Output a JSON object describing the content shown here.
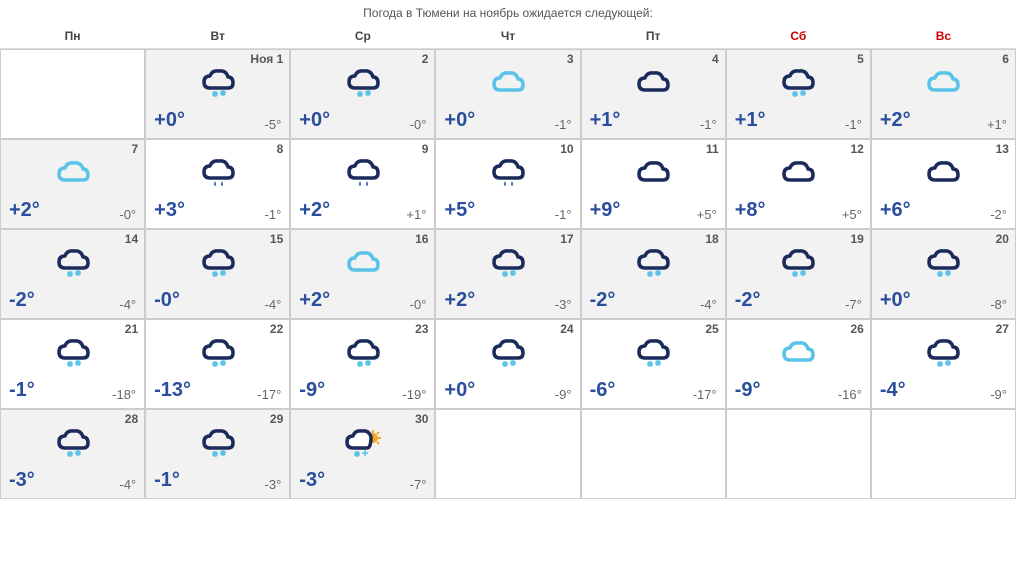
{
  "title": "Погода в Тюмени на ноябрь ожидается следующей:",
  "weekdays": [
    "Пн",
    "Вт",
    "Ср",
    "Чт",
    "Пт",
    "Сб",
    "Вс"
  ],
  "weekend_color": "#cc0000",
  "weekday_color": "#444444",
  "high_color": "#2a4e9c",
  "low_color": "#666666",
  "alt_bg": "#f2f2f2",
  "border_color": "#cccccc",
  "icon_colors": {
    "cloud_dark": "#1a2a5a",
    "cloud_light": "#5ac3e8",
    "snow": "#5ac3e8",
    "rain": "#3a6aaa",
    "sun": "#f5a623"
  },
  "cells": [
    {
      "day": "",
      "label": "",
      "high": "",
      "low": "",
      "icon": "",
      "alt": false,
      "empty": true
    },
    {
      "day": "1",
      "label": "Ноя 1",
      "high": "+0°",
      "low": "-5°",
      "icon": "cloud-snow-dark",
      "alt": true
    },
    {
      "day": "2",
      "label": "2",
      "high": "+0°",
      "low": "-0°",
      "icon": "cloud-snow-dark",
      "alt": true
    },
    {
      "day": "3",
      "label": "3",
      "high": "+0°",
      "low": "-1°",
      "icon": "cloud-light",
      "alt": true
    },
    {
      "day": "4",
      "label": "4",
      "high": "+1°",
      "low": "-1°",
      "icon": "cloud-dark",
      "alt": true
    },
    {
      "day": "5",
      "label": "5",
      "high": "+1°",
      "low": "-1°",
      "icon": "cloud-snow-dark",
      "alt": true
    },
    {
      "day": "6",
      "label": "6",
      "high": "+2°",
      "low": "+1°",
      "icon": "cloud-light",
      "alt": true
    },
    {
      "day": "7",
      "label": "7",
      "high": "+2°",
      "low": "-0°",
      "icon": "cloud-light",
      "alt": true
    },
    {
      "day": "8",
      "label": "8",
      "high": "+3°",
      "low": "-1°",
      "icon": "cloud-rain-dark",
      "alt": false
    },
    {
      "day": "9",
      "label": "9",
      "high": "+2°",
      "low": "+1°",
      "icon": "cloud-rain-dark",
      "alt": false
    },
    {
      "day": "10",
      "label": "10",
      "high": "+5°",
      "low": "-1°",
      "icon": "cloud-rain-dark",
      "alt": false
    },
    {
      "day": "11",
      "label": "11",
      "high": "+9°",
      "low": "+5°",
      "icon": "cloud-dark",
      "alt": false
    },
    {
      "day": "12",
      "label": "12",
      "high": "+8°",
      "low": "+5°",
      "icon": "cloud-dark",
      "alt": false
    },
    {
      "day": "13",
      "label": "13",
      "high": "+6°",
      "low": "-2°",
      "icon": "cloud-dark",
      "alt": false
    },
    {
      "day": "14",
      "label": "14",
      "high": "-2°",
      "low": "-4°",
      "icon": "cloud-snow-dark",
      "alt": true
    },
    {
      "day": "15",
      "label": "15",
      "high": "-0°",
      "low": "-4°",
      "icon": "cloud-snow-dark",
      "alt": true
    },
    {
      "day": "16",
      "label": "16",
      "high": "+2°",
      "low": "-0°",
      "icon": "cloud-light",
      "alt": true
    },
    {
      "day": "17",
      "label": "17",
      "high": "+2°",
      "low": "-3°",
      "icon": "cloud-snow-dark",
      "alt": true
    },
    {
      "day": "18",
      "label": "18",
      "high": "-2°",
      "low": "-4°",
      "icon": "cloud-snow-dark",
      "alt": true
    },
    {
      "day": "19",
      "label": "19",
      "high": "-2°",
      "low": "-7°",
      "icon": "cloud-snow-dark",
      "alt": true
    },
    {
      "day": "20",
      "label": "20",
      "high": "+0°",
      "low": "-8°",
      "icon": "cloud-snow-dark",
      "alt": true
    },
    {
      "day": "21",
      "label": "21",
      "high": "-1°",
      "low": "-18°",
      "icon": "cloud-snow-dark",
      "alt": false
    },
    {
      "day": "22",
      "label": "22",
      "high": "-13°",
      "low": "-17°",
      "icon": "cloud-snow-dark",
      "alt": false
    },
    {
      "day": "23",
      "label": "23",
      "high": "-9°",
      "low": "-19°",
      "icon": "cloud-snow-dark",
      "alt": false
    },
    {
      "day": "24",
      "label": "24",
      "high": "+0°",
      "low": "-9°",
      "icon": "cloud-snow-dark",
      "alt": false
    },
    {
      "day": "25",
      "label": "25",
      "high": "-6°",
      "low": "-17°",
      "icon": "cloud-snow-dark",
      "alt": false
    },
    {
      "day": "26",
      "label": "26",
      "high": "-9°",
      "low": "-16°",
      "icon": "cloud-light",
      "alt": false
    },
    {
      "day": "27",
      "label": "27",
      "high": "-4°",
      "low": "-9°",
      "icon": "cloud-snow-dark",
      "alt": false
    },
    {
      "day": "28",
      "label": "28",
      "high": "-3°",
      "low": "-4°",
      "icon": "cloud-snow-dark",
      "alt": true
    },
    {
      "day": "29",
      "label": "29",
      "high": "-1°",
      "low": "-3°",
      "icon": "cloud-snow-dark",
      "alt": true
    },
    {
      "day": "30",
      "label": "30",
      "high": "-3°",
      "low": "-7°",
      "icon": "cloud-snow-sun",
      "alt": true
    },
    {
      "day": "",
      "label": "",
      "high": "",
      "low": "",
      "icon": "",
      "alt": false,
      "empty": true
    },
    {
      "day": "",
      "label": "",
      "high": "",
      "low": "",
      "icon": "",
      "alt": false,
      "empty": true
    },
    {
      "day": "",
      "label": "",
      "high": "",
      "low": "",
      "icon": "",
      "alt": false,
      "empty": true
    },
    {
      "day": "",
      "label": "",
      "high": "",
      "low": "",
      "icon": "",
      "alt": false,
      "empty": true
    }
  ]
}
